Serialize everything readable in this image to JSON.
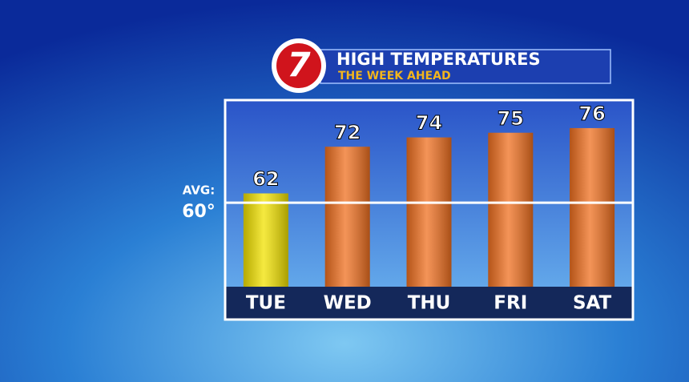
{
  "chart_data": {
    "type": "bar",
    "logo": "7",
    "title": "HIGH TEMPERATURES",
    "subtitle": "THE WEEK AHEAD",
    "categories": [
      "TUE",
      "WED",
      "THU",
      "FRI",
      "SAT"
    ],
    "values": [
      62,
      72,
      74,
      75,
      76
    ],
    "colors": [
      "#f2e200",
      "#f07020",
      "#f07020",
      "#f07020",
      "#f07020"
    ],
    "ylim": [
      42,
      82
    ],
    "avg_label": "AVG:",
    "avg": {
      "value": 60,
      "label": "60°"
    }
  }
}
